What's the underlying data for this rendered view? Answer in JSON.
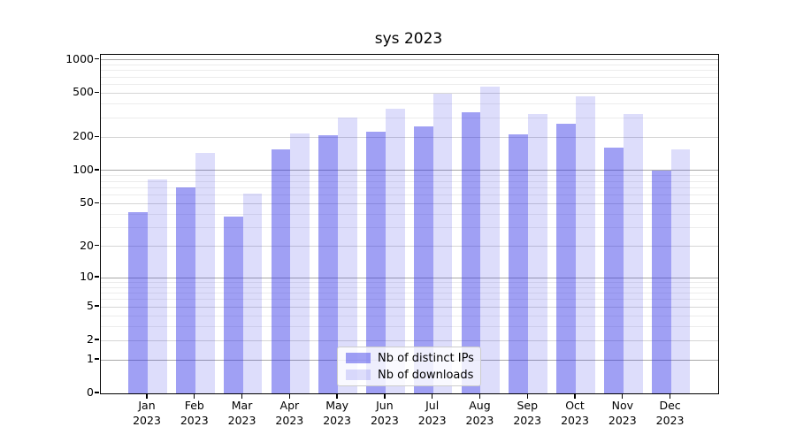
{
  "chart_data": {
    "type": "bar",
    "title": "sys 2023",
    "xlabel": "",
    "ylabel": "",
    "yscale": "log1p",
    "ylim": [
      0,
      1110
    ],
    "yticks": [
      0,
      1,
      2,
      5,
      10,
      20,
      50,
      100,
      200,
      500,
      1000
    ],
    "grid": {
      "major": [
        1,
        10,
        100,
        1000
      ],
      "labeled_minor": [
        2,
        5,
        20,
        50,
        200,
        500
      ],
      "minor": [
        3,
        4,
        6,
        7,
        8,
        9,
        30,
        40,
        60,
        70,
        80,
        90,
        300,
        400,
        600,
        700,
        800,
        900
      ]
    },
    "legend_position": "lower center",
    "months": [
      "Jan",
      "Feb",
      "Mar",
      "Apr",
      "May",
      "Jun",
      "Jul",
      "Aug",
      "Sep",
      "Oct",
      "Nov",
      "Dec"
    ],
    "year": "2023",
    "series": [
      {
        "name": "Nb of distinct IPs",
        "color": "rgba(45,45,230,0.45)",
        "values": [
          42,
          70,
          38,
          156,
          210,
          225,
          250,
          335,
          213,
          265,
          161,
          100
        ]
      },
      {
        "name": "Nb of downloads",
        "color": "rgba(45,45,230,0.16)",
        "values": [
          83,
          145,
          62,
          216,
          300,
          365,
          500,
          575,
          325,
          465,
          322,
          155
        ]
      }
    ]
  }
}
